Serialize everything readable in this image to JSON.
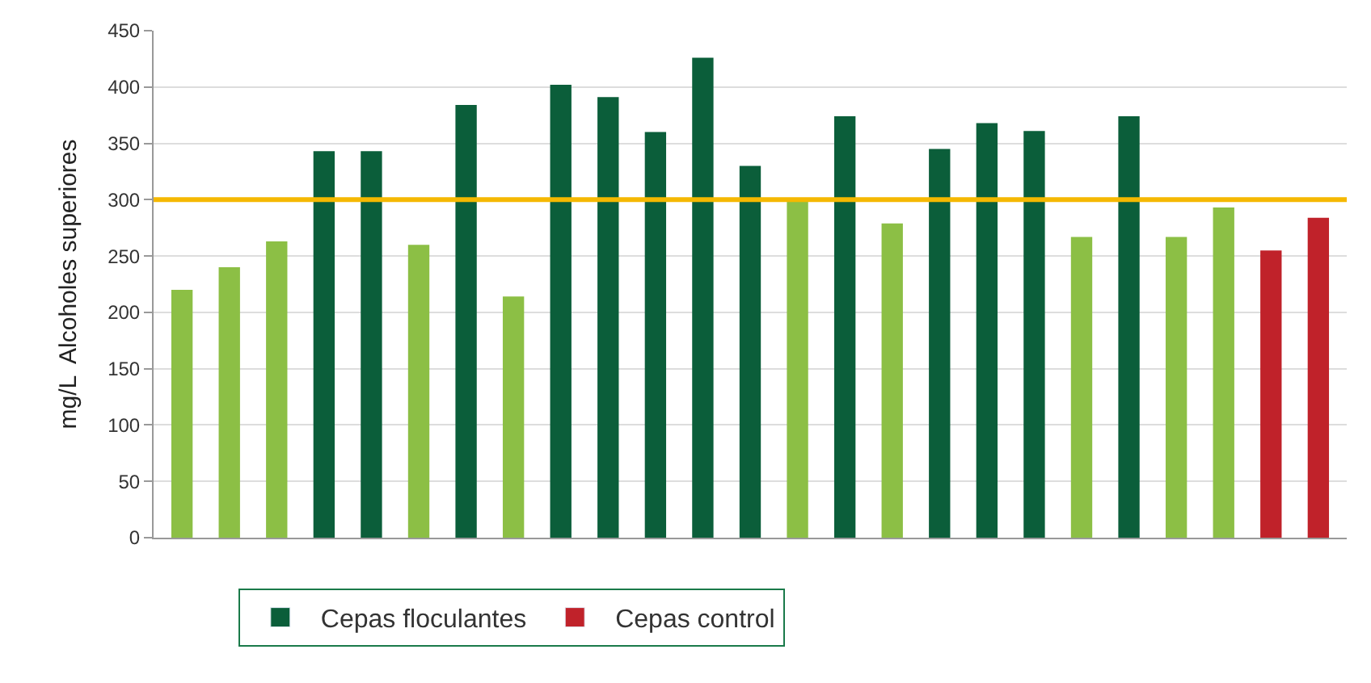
{
  "chart_data": {
    "type": "bar",
    "ylabel": "mg/L  Alcoholes superiores",
    "categories": [
      null,
      null,
      null,
      null,
      null,
      null,
      null,
      null,
      null,
      null,
      null,
      null,
      null,
      null,
      null,
      null,
      null,
      null,
      null,
      null,
      null,
      null,
      null,
      null,
      null
    ],
    "series": [
      {
        "name": "Cepas floculantes",
        "color": "#0b5e3a",
        "colors": [
          "#8cbf45",
          "#8cbf45",
          "#8cbf45",
          "#0b5e3a",
          "#0b5e3a",
          "#8cbf45",
          "#0b5e3a",
          "#8cbf45",
          "#0b5e3a",
          "#0b5e3a",
          "#0b5e3a",
          "#0b5e3a",
          "#0b5e3a",
          "#8cbf45",
          "#0b5e3a",
          "#8cbf45",
          "#0b5e3a",
          "#0b5e3a",
          "#0b5e3a",
          "#8cbf45",
          "#0b5e3a",
          "#8cbf45",
          "#8cbf45",
          null,
          null
        ],
        "values": [
          220,
          240,
          263,
          343,
          343,
          260,
          384,
          214,
          402,
          391,
          360,
          426,
          330,
          298,
          374,
          279,
          345,
          368,
          361,
          267,
          374,
          267,
          293,
          null,
          null
        ]
      },
      {
        "name": "Cepas control",
        "color": "#c0222a",
        "values": [
          null,
          null,
          null,
          null,
          null,
          null,
          null,
          null,
          null,
          null,
          null,
          null,
          null,
          null,
          null,
          null,
          null,
          null,
          null,
          null,
          null,
          null,
          null,
          255,
          284
        ]
      }
    ],
    "ylim": [
      0,
      450
    ],
    "yticks": [
      0,
      50,
      100,
      150,
      200,
      250,
      300,
      350,
      400,
      450
    ],
    "grid": "y",
    "ref_lines": [
      {
        "axis": "y",
        "value": 300,
        "color": "#f5b800"
      }
    ],
    "legend": "bottom",
    "tick_labels": "y"
  }
}
